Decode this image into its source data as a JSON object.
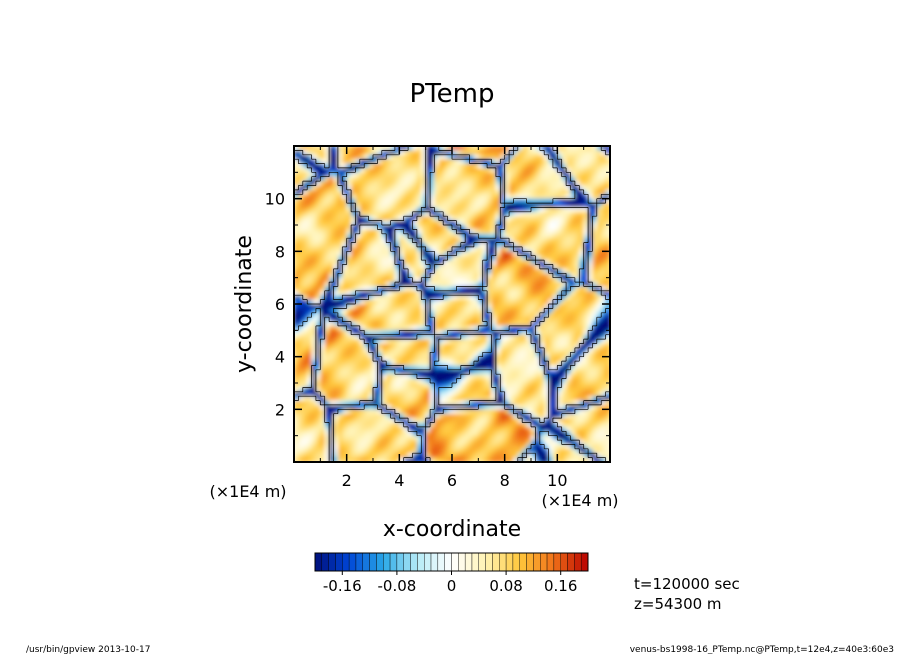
{
  "chart_data": {
    "type": "heatmap",
    "title": "PTemp",
    "xlabel": "x-coordinate",
    "ylabel": "y-coordinate",
    "x_unit_label": "(×1E4 m)",
    "y_unit_label": "(×1E4 m)",
    "xlim": [
      0,
      12
    ],
    "ylim": [
      0,
      12
    ],
    "x_ticks": [
      2,
      4,
      6,
      8,
      10
    ],
    "y_ticks": [
      2,
      4,
      6,
      8,
      10
    ],
    "x_tick_labels": [
      "2",
      "4",
      "6",
      "8",
      "10"
    ],
    "y_tick_labels": [
      "2",
      "4",
      "6",
      "8",
      "10"
    ],
    "colorbar": {
      "min": -0.2,
      "max": 0.2,
      "n_levels": 40,
      "ticks": [
        -0.16,
        -0.08,
        0,
        0.08,
        0.16
      ],
      "tick_labels": [
        "-0.16",
        "-0.08",
        "0",
        "0.08",
        "0.16"
      ],
      "colors": [
        "#000e7a",
        "#0046d6",
        "#29a8e8",
        "#b6ebf6",
        "#ffffff",
        "#fff3b4",
        "#ffc83c",
        "#f07018",
        "#b80000"
      ]
    },
    "annotations": [
      "t=120000 sec",
      "z=54300 m"
    ],
    "footer_left": "/usr/bin/gpview   2013-10-17",
    "footer_right": "venus-bs1998-16_PTemp.nc@PTemp,t=12e4,z=40e3:60e3"
  }
}
